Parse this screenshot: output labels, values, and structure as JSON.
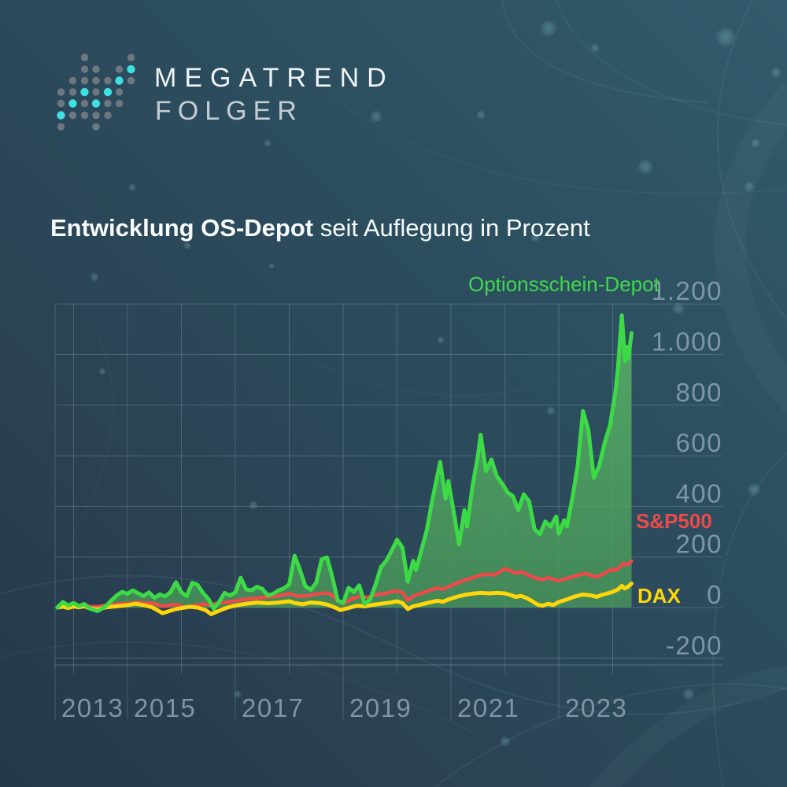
{
  "logo": {
    "line1": "MEGATREND",
    "line2": "FOLGER"
  },
  "title": {
    "bold": "Entwicklung OS-Depot",
    "regular": " seit Auflegung in Prozent"
  },
  "colors": {
    "background_top_right": "#315b6c",
    "background_bottom_left": "#253848",
    "accent_cyan": "#3fe0e2",
    "logo_gray": "#6d7780",
    "depot_green": "#3cdb46",
    "area_green": "rgba(80,170,88,0.8)",
    "sp500_red": "#ee4a4b",
    "dax_yellow": "#ffd60a",
    "grid": "rgba(190,212,226,0.22)",
    "axis_label": "#8ea3b3"
  },
  "chart_data": {
    "type": "line",
    "title": "Entwicklung OS-Depot seit Auflegung in Prozent",
    "ylabel": "Prozent",
    "xlabel": "",
    "grid": true,
    "legend_position": "inline-right",
    "x_axis": {
      "labels": [
        "2013",
        "2015",
        "2017",
        "2019",
        "2021",
        "2023"
      ],
      "gridline_years": [
        2014,
        2015,
        2016,
        2017,
        2018,
        2019,
        2020,
        2021,
        2022,
        2023,
        2024
      ],
      "range": [
        2013.67,
        2024.4
      ]
    },
    "y_axis": {
      "ticks": [
        "1.200",
        "1.000",
        "800",
        "600",
        "400",
        "200",
        "0",
        "-200"
      ],
      "values": [
        1200,
        1000,
        800,
        600,
        400,
        200,
        0,
        -200
      ],
      "range": [
        -280,
        1200
      ]
    },
    "series": [
      {
        "name": "Optionsschein-Depot",
        "color": "#3cdb46",
        "fill": true,
        "points": [
          [
            2013.7,
            0
          ],
          [
            2013.8,
            22
          ],
          [
            2013.9,
            8
          ],
          [
            2014.0,
            18
          ],
          [
            2014.1,
            6
          ],
          [
            2014.2,
            14
          ],
          [
            2014.3,
            -4
          ],
          [
            2014.45,
            -14
          ],
          [
            2014.6,
            6
          ],
          [
            2014.7,
            28
          ],
          [
            2014.8,
            48
          ],
          [
            2014.9,
            62
          ],
          [
            2015.0,
            54
          ],
          [
            2015.1,
            68
          ],
          [
            2015.2,
            56
          ],
          [
            2015.3,
            46
          ],
          [
            2015.4,
            60
          ],
          [
            2015.5,
            38
          ],
          [
            2015.6,
            52
          ],
          [
            2015.7,
            44
          ],
          [
            2015.8,
            62
          ],
          [
            2015.9,
            100
          ],
          [
            2016.0,
            60
          ],
          [
            2016.1,
            45
          ],
          [
            2016.2,
            98
          ],
          [
            2016.3,
            90
          ],
          [
            2016.4,
            58
          ],
          [
            2016.5,
            34
          ],
          [
            2016.6,
            -6
          ],
          [
            2016.7,
            22
          ],
          [
            2016.8,
            58
          ],
          [
            2016.9,
            48
          ],
          [
            2017.0,
            60
          ],
          [
            2017.1,
            118
          ],
          [
            2017.2,
            72
          ],
          [
            2017.3,
            68
          ],
          [
            2017.4,
            82
          ],
          [
            2017.5,
            74
          ],
          [
            2017.6,
            48
          ],
          [
            2017.7,
            54
          ],
          [
            2017.8,
            68
          ],
          [
            2017.9,
            76
          ],
          [
            2018.0,
            92
          ],
          [
            2018.1,
            205
          ],
          [
            2018.2,
            148
          ],
          [
            2018.3,
            85
          ],
          [
            2018.4,
            70
          ],
          [
            2018.5,
            98
          ],
          [
            2018.6,
            190
          ],
          [
            2018.7,
            198
          ],
          [
            2018.8,
            120
          ],
          [
            2018.9,
            28
          ],
          [
            2019.0,
            18
          ],
          [
            2019.1,
            78
          ],
          [
            2019.2,
            62
          ],
          [
            2019.3,
            88
          ],
          [
            2019.4,
            14
          ],
          [
            2019.5,
            32
          ],
          [
            2019.6,
            90
          ],
          [
            2019.7,
            160
          ],
          [
            2019.8,
            185
          ],
          [
            2019.9,
            225
          ],
          [
            2020.0,
            268
          ],
          [
            2020.1,
            238
          ],
          [
            2020.2,
            102
          ],
          [
            2020.3,
            185
          ],
          [
            2020.35,
            148
          ],
          [
            2020.45,
            225
          ],
          [
            2020.55,
            305
          ],
          [
            2020.65,
            420
          ],
          [
            2020.8,
            575
          ],
          [
            2020.9,
            430
          ],
          [
            2020.95,
            500
          ],
          [
            2021.05,
            380
          ],
          [
            2021.15,
            250
          ],
          [
            2021.25,
            385
          ],
          [
            2021.3,
            320
          ],
          [
            2021.4,
            480
          ],
          [
            2021.5,
            600
          ],
          [
            2021.55,
            683
          ],
          [
            2021.65,
            540
          ],
          [
            2021.75,
            585
          ],
          [
            2021.85,
            520
          ],
          [
            2021.95,
            490
          ],
          [
            2022.05,
            455
          ],
          [
            2022.15,
            440
          ],
          [
            2022.25,
            385
          ],
          [
            2022.35,
            448
          ],
          [
            2022.45,
            420
          ],
          [
            2022.55,
            310
          ],
          [
            2022.65,
            290
          ],
          [
            2022.75,
            340
          ],
          [
            2022.85,
            320
          ],
          [
            2022.95,
            360
          ],
          [
            2023.0,
            292
          ],
          [
            2023.1,
            345
          ],
          [
            2023.15,
            320
          ],
          [
            2023.25,
            430
          ],
          [
            2023.35,
            560
          ],
          [
            2023.45,
            777
          ],
          [
            2023.55,
            700
          ],
          [
            2023.65,
            513
          ],
          [
            2023.75,
            560
          ],
          [
            2023.85,
            650
          ],
          [
            2023.95,
            720
          ],
          [
            2024.05,
            850
          ],
          [
            2024.1,
            950
          ],
          [
            2024.17,
            1155
          ],
          [
            2024.23,
            975
          ],
          [
            2024.26,
            1030
          ],
          [
            2024.29,
            985
          ],
          [
            2024.35,
            1085
          ]
        ]
      },
      {
        "name": "S&P500",
        "color": "#ee4a4b",
        "fill": false,
        "points": [
          [
            2013.7,
            0
          ],
          [
            2013.8,
            5
          ],
          [
            2013.9,
            3
          ],
          [
            2014.0,
            8
          ],
          [
            2014.1,
            5
          ],
          [
            2014.2,
            9
          ],
          [
            2014.3,
            4
          ],
          [
            2014.45,
            3
          ],
          [
            2014.6,
            8
          ],
          [
            2014.8,
            13
          ],
          [
            2015.0,
            16
          ],
          [
            2015.2,
            21
          ],
          [
            2015.35,
            18
          ],
          [
            2015.5,
            16
          ],
          [
            2015.65,
            5
          ],
          [
            2015.8,
            10
          ],
          [
            2015.9,
            12
          ],
          [
            2016.0,
            5
          ],
          [
            2016.1,
            1
          ],
          [
            2016.25,
            9
          ],
          [
            2016.4,
            13
          ],
          [
            2016.55,
            11
          ],
          [
            2016.7,
            18
          ],
          [
            2016.85,
            21
          ],
          [
            2017.0,
            27
          ],
          [
            2017.2,
            33
          ],
          [
            2017.4,
            37
          ],
          [
            2017.6,
            41
          ],
          [
            2017.8,
            46
          ],
          [
            2018.0,
            55
          ],
          [
            2018.1,
            48
          ],
          [
            2018.25,
            44
          ],
          [
            2018.4,
            50
          ],
          [
            2018.6,
            55
          ],
          [
            2018.7,
            58
          ],
          [
            2018.8,
            48
          ],
          [
            2018.9,
            25
          ],
          [
            2019.0,
            16
          ],
          [
            2019.15,
            33
          ],
          [
            2019.3,
            44
          ],
          [
            2019.45,
            40
          ],
          [
            2019.6,
            50
          ],
          [
            2019.75,
            54
          ],
          [
            2019.9,
            62
          ],
          [
            2020.0,
            66
          ],
          [
            2020.1,
            58
          ],
          [
            2020.2,
            28
          ],
          [
            2020.3,
            45
          ],
          [
            2020.45,
            56
          ],
          [
            2020.6,
            68
          ],
          [
            2020.75,
            78
          ],
          [
            2020.85,
            72
          ],
          [
            2020.95,
            82
          ],
          [
            2021.1,
            95
          ],
          [
            2021.25,
            108
          ],
          [
            2021.4,
            118
          ],
          [
            2021.55,
            128
          ],
          [
            2021.7,
            132
          ],
          [
            2021.8,
            128
          ],
          [
            2021.9,
            140
          ],
          [
            2021.98,
            153
          ],
          [
            2022.1,
            146
          ],
          [
            2022.2,
            136
          ],
          [
            2022.3,
            142
          ],
          [
            2022.4,
            132
          ],
          [
            2022.5,
            122
          ],
          [
            2022.6,
            115
          ],
          [
            2022.7,
            110
          ],
          [
            2022.8,
            118
          ],
          [
            2022.9,
            112
          ],
          [
            2023.0,
            106
          ],
          [
            2023.1,
            112
          ],
          [
            2023.2,
            118
          ],
          [
            2023.3,
            124
          ],
          [
            2023.4,
            130
          ],
          [
            2023.5,
            135
          ],
          [
            2023.6,
            127
          ],
          [
            2023.7,
            120
          ],
          [
            2023.8,
            130
          ],
          [
            2023.9,
            142
          ],
          [
            2024.0,
            152
          ],
          [
            2024.05,
            147
          ],
          [
            2024.12,
            158
          ],
          [
            2024.2,
            175
          ],
          [
            2024.25,
            168
          ],
          [
            2024.3,
            174
          ],
          [
            2024.35,
            184
          ]
        ]
      },
      {
        "name": "DAX",
        "color": "#ffd60a",
        "fill": false,
        "points": [
          [
            2013.7,
            0
          ],
          [
            2013.8,
            3
          ],
          [
            2013.9,
            -2
          ],
          [
            2014.0,
            4
          ],
          [
            2014.1,
            1
          ],
          [
            2014.2,
            5
          ],
          [
            2014.3,
            -3
          ],
          [
            2014.45,
            -7
          ],
          [
            2014.6,
            1
          ],
          [
            2014.8,
            5
          ],
          [
            2015.0,
            10
          ],
          [
            2015.15,
            15
          ],
          [
            2015.3,
            10
          ],
          [
            2015.45,
            2
          ],
          [
            2015.55,
            -10
          ],
          [
            2015.65,
            -22
          ],
          [
            2015.8,
            -12
          ],
          [
            2015.9,
            -6
          ],
          [
            2016.0,
            -2
          ],
          [
            2016.15,
            3
          ],
          [
            2016.3,
            0
          ],
          [
            2016.45,
            -10
          ],
          [
            2016.55,
            -26
          ],
          [
            2016.7,
            -12
          ],
          [
            2016.85,
            0
          ],
          [
            2017.0,
            8
          ],
          [
            2017.2,
            15
          ],
          [
            2017.4,
            20
          ],
          [
            2017.6,
            17
          ],
          [
            2017.8,
            20
          ],
          [
            2018.0,
            25
          ],
          [
            2018.1,
            18
          ],
          [
            2018.25,
            13
          ],
          [
            2018.4,
            20
          ],
          [
            2018.55,
            18
          ],
          [
            2018.7,
            12
          ],
          [
            2018.85,
            0
          ],
          [
            2018.95,
            -10
          ],
          [
            2019.1,
            -2
          ],
          [
            2019.25,
            7
          ],
          [
            2019.4,
            5
          ],
          [
            2019.55,
            11
          ],
          [
            2019.7,
            15
          ],
          [
            2019.85,
            19
          ],
          [
            2020.0,
            25
          ],
          [
            2020.1,
            18
          ],
          [
            2020.2,
            -6
          ],
          [
            2020.3,
            5
          ],
          [
            2020.45,
            12
          ],
          [
            2020.6,
            20
          ],
          [
            2020.75,
            27
          ],
          [
            2020.85,
            23
          ],
          [
            2020.95,
            32
          ],
          [
            2021.1,
            42
          ],
          [
            2021.25,
            50
          ],
          [
            2021.4,
            55
          ],
          [
            2021.55,
            58
          ],
          [
            2021.7,
            56
          ],
          [
            2021.85,
            58
          ],
          [
            2022.0,
            56
          ],
          [
            2022.1,
            50
          ],
          [
            2022.2,
            42
          ],
          [
            2022.3,
            46
          ],
          [
            2022.4,
            38
          ],
          [
            2022.5,
            26
          ],
          [
            2022.6,
            12
          ],
          [
            2022.7,
            7
          ],
          [
            2022.8,
            15
          ],
          [
            2022.9,
            10
          ],
          [
            2023.0,
            22
          ],
          [
            2023.15,
            32
          ],
          [
            2023.3,
            44
          ],
          [
            2023.45,
            52
          ],
          [
            2023.6,
            48
          ],
          [
            2023.7,
            42
          ],
          [
            2023.8,
            50
          ],
          [
            2023.9,
            56
          ],
          [
            2024.0,
            62
          ],
          [
            2024.1,
            72
          ],
          [
            2024.17,
            86
          ],
          [
            2024.22,
            76
          ],
          [
            2024.28,
            82
          ],
          [
            2024.35,
            95
          ]
        ]
      }
    ]
  }
}
